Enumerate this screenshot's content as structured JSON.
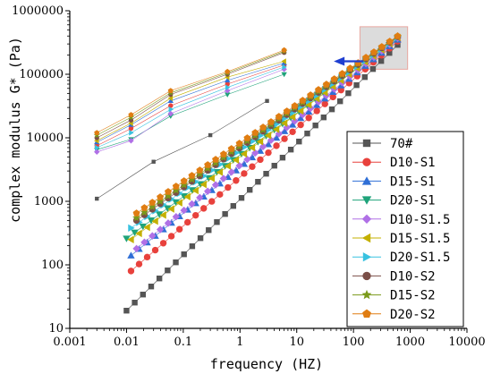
{
  "chart_data": {
    "type": "scatter",
    "title": "",
    "xlabel": "frequency (HZ)",
    "ylabel": "complex modulus G* (Pa)",
    "x_scale": "log",
    "y_scale": "log",
    "xlim": [
      0.001,
      10000
    ],
    "ylim": [
      10,
      1000000
    ],
    "x_ticks": [
      "0.001",
      "0.01",
      "0.1",
      "1",
      "10",
      "100",
      "1000",
      "10000"
    ],
    "y_ticks": [
      "10",
      "100",
      "1000",
      "10000",
      "100000",
      "1000000"
    ],
    "legend_position": "lower-right",
    "grid": false,
    "annotations": [
      {
        "type": "shaded-box",
        "x_range": [
          130,
          900
        ],
        "y_range": [
          120000,
          560000
        ],
        "color": "#dcdcdc",
        "border": "#e8a7a0"
      },
      {
        "type": "arrow",
        "direction": "left",
        "from": [
          150,
          160000
        ],
        "to": [
          45,
          160000
        ],
        "color": "#1f3fd1"
      }
    ],
    "series": [
      {
        "name": "70#",
        "marker": "square",
        "color": "#555555",
        "master_x_range": [
          0.01,
          600
        ],
        "master_y_range": [
          19,
          290000
        ],
        "inset_x": [
          0.003,
          0.03,
          0.3,
          3
        ],
        "inset_y": [
          1100,
          4200,
          11000,
          38000
        ]
      },
      {
        "name": "D10-S1",
        "marker": "circle",
        "color": "#e8413c",
        "master_x_range": [
          0.012,
          600
        ],
        "master_y_range": [
          80,
          330000
        ],
        "inset_x": [
          0.003,
          0.012,
          0.06,
          0.6,
          6
        ],
        "inset_y": [
          7500,
          14000,
          32000,
          70000,
          140000
        ]
      },
      {
        "name": "D15-S1",
        "marker": "triangle-up",
        "color": "#2f6fd6",
        "master_x_range": [
          0.012,
          600
        ],
        "master_y_range": [
          140,
          350000
        ],
        "inset_x": [
          0.003,
          0.012,
          0.06,
          0.6,
          6
        ],
        "inset_y": [
          8500,
          16000,
          38000,
          80000,
          150000
        ]
      },
      {
        "name": "D20-S1",
        "marker": "triangle-down",
        "color": "#1fa37a",
        "master_x_range": [
          0.01,
          600
        ],
        "master_y_range": [
          260,
          360000
        ],
        "inset_x": [
          0.003,
          0.012,
          0.06,
          0.6,
          6
        ],
        "inset_y": [
          6500,
          9500,
          22000,
          48000,
          100000
        ]
      },
      {
        "name": "D10-S1.5",
        "marker": "diamond",
        "color": "#b070e6",
        "master_x_range": [
          0.015,
          600
        ],
        "master_y_range": [
          180,
          370000
        ],
        "inset_x": [
          0.003,
          0.012,
          0.06,
          0.6,
          6
        ],
        "inset_y": [
          6000,
          9000,
          24000,
          55000,
          120000
        ]
      },
      {
        "name": "D15-S1.5",
        "marker": "triangle-left",
        "color": "#c4b000",
        "master_x_range": [
          0.012,
          600
        ],
        "master_y_range": [
          250,
          380000
        ],
        "inset_x": [
          0.003,
          0.012,
          0.06,
          0.6,
          6
        ],
        "inset_y": [
          9000,
          17000,
          42000,
          90000,
          160000
        ]
      },
      {
        "name": "D20-S1.5",
        "marker": "triangle-right",
        "color": "#38c2e0",
        "master_x_range": [
          0.012,
          600
        ],
        "master_y_range": [
          380,
          380000
        ],
        "inset_x": [
          0.003,
          0.012,
          0.06,
          0.6,
          6
        ],
        "inset_y": [
          7000,
          12000,
          28000,
          62000,
          130000
        ]
      },
      {
        "name": "D10-S2",
        "marker": "circle",
        "color": "#7b4f48",
        "master_x_range": [
          0.015,
          600
        ],
        "master_y_range": [
          500,
          390000
        ],
        "inset_x": [
          0.003,
          0.012,
          0.06,
          0.6,
          6
        ],
        "inset_y": [
          10000,
          19000,
          48000,
          100000,
          220000
        ]
      },
      {
        "name": "D15-S2",
        "marker": "star",
        "color": "#7a9a1a",
        "master_x_range": [
          0.015,
          600
        ],
        "master_y_range": [
          550,
          395000
        ],
        "inset_x": [
          0.003,
          0.012,
          0.06,
          0.6,
          6
        ],
        "inset_y": [
          11000,
          21000,
          51000,
          105000,
          230000
        ]
      },
      {
        "name": "D20-S2",
        "marker": "pentagon",
        "color": "#e07d12",
        "master_x_range": [
          0.015,
          600
        ],
        "master_y_range": [
          650,
          400000
        ],
        "inset_x": [
          0.003,
          0.012,
          0.06,
          0.6,
          6
        ],
        "inset_y": [
          12000,
          23000,
          55000,
          110000,
          240000
        ]
      }
    ]
  }
}
